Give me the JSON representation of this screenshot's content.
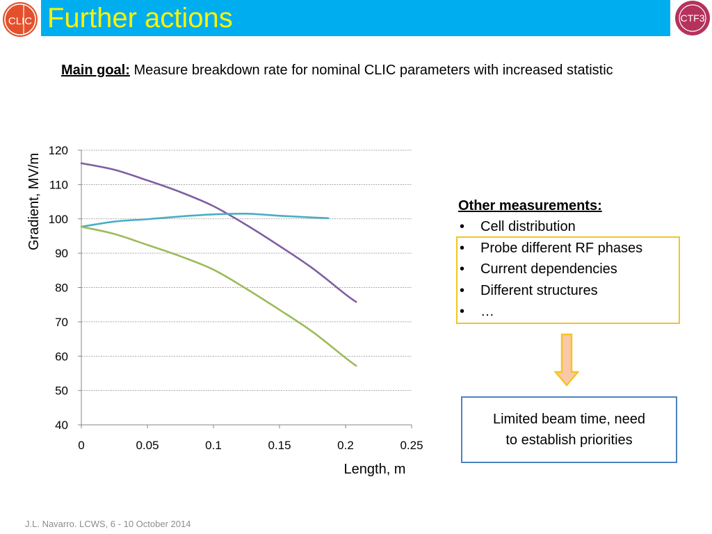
{
  "header": {
    "title": "Further actions",
    "logo_left_text": "CLIC",
    "logo_right_text": "CTF3"
  },
  "main_goal": {
    "label": "Main goal:",
    "text": "Measure breakdown rate for nominal CLIC parameters with increased statistic"
  },
  "chart_data": {
    "type": "line",
    "xlabel": "Length, m",
    "ylabel": "Gradient, MV/m",
    "xlim": [
      0,
      0.25
    ],
    "ylim": [
      40,
      120
    ],
    "xticks": [
      0,
      0.05,
      0.1,
      0.15,
      0.2,
      0.25
    ],
    "xtick_labels": [
      "0",
      "0.05",
      "0.1",
      "0.15",
      "0.2",
      "0.25"
    ],
    "yticks": [
      40,
      50,
      60,
      70,
      80,
      90,
      100,
      110,
      120
    ],
    "ytick_labels": [
      "40",
      "50",
      "60",
      "70",
      "80",
      "90",
      "100",
      "110",
      "120"
    ],
    "grid": "horizontal",
    "series": [
      {
        "color": "#7e5ea2",
        "x": [
          0,
          0.025,
          0.05,
          0.075,
          0.1,
          0.125,
          0.15,
          0.175,
          0.2,
          0.208
        ],
        "y": [
          116.2,
          114.3,
          111.2,
          107.8,
          103.7,
          98.2,
          92.1,
          85.6,
          78.0,
          75.8
        ]
      },
      {
        "color": "#4bacc6",
        "x": [
          0,
          0.025,
          0.05,
          0.075,
          0.1,
          0.125,
          0.15,
          0.175,
          0.187
        ],
        "y": [
          97.7,
          99.2,
          99.9,
          100.7,
          101.3,
          101.5,
          100.9,
          100.4,
          100.2
        ]
      },
      {
        "color": "#9bbb59",
        "x": [
          0,
          0.025,
          0.05,
          0.075,
          0.1,
          0.125,
          0.15,
          0.175,
          0.2,
          0.208
        ],
        "y": [
          97.7,
          95.6,
          92.4,
          89.1,
          85.2,
          79.6,
          73.5,
          67.1,
          59.5,
          57.2
        ]
      }
    ]
  },
  "other_measurements": {
    "heading": "Other measurements:",
    "bullet": "•",
    "items": [
      "Cell distribution",
      "Probe different RF phases",
      "Current dependencies",
      "Different structures",
      "…"
    ]
  },
  "limited_box": {
    "line1": "Limited beam time, need",
    "line2": "to establish priorities"
  },
  "footer": {
    "text": "J.L. Navarro. LCWS, 6 - 10 October 2014"
  },
  "colors": {
    "title_bar": "#00aeef",
    "title_text": "#fff200",
    "other_box_border": "#f6c325",
    "arrow_fill": "#f9c8a8",
    "arrow_stroke": "#f6c325",
    "limited_box_border": "#4f81bd"
  }
}
